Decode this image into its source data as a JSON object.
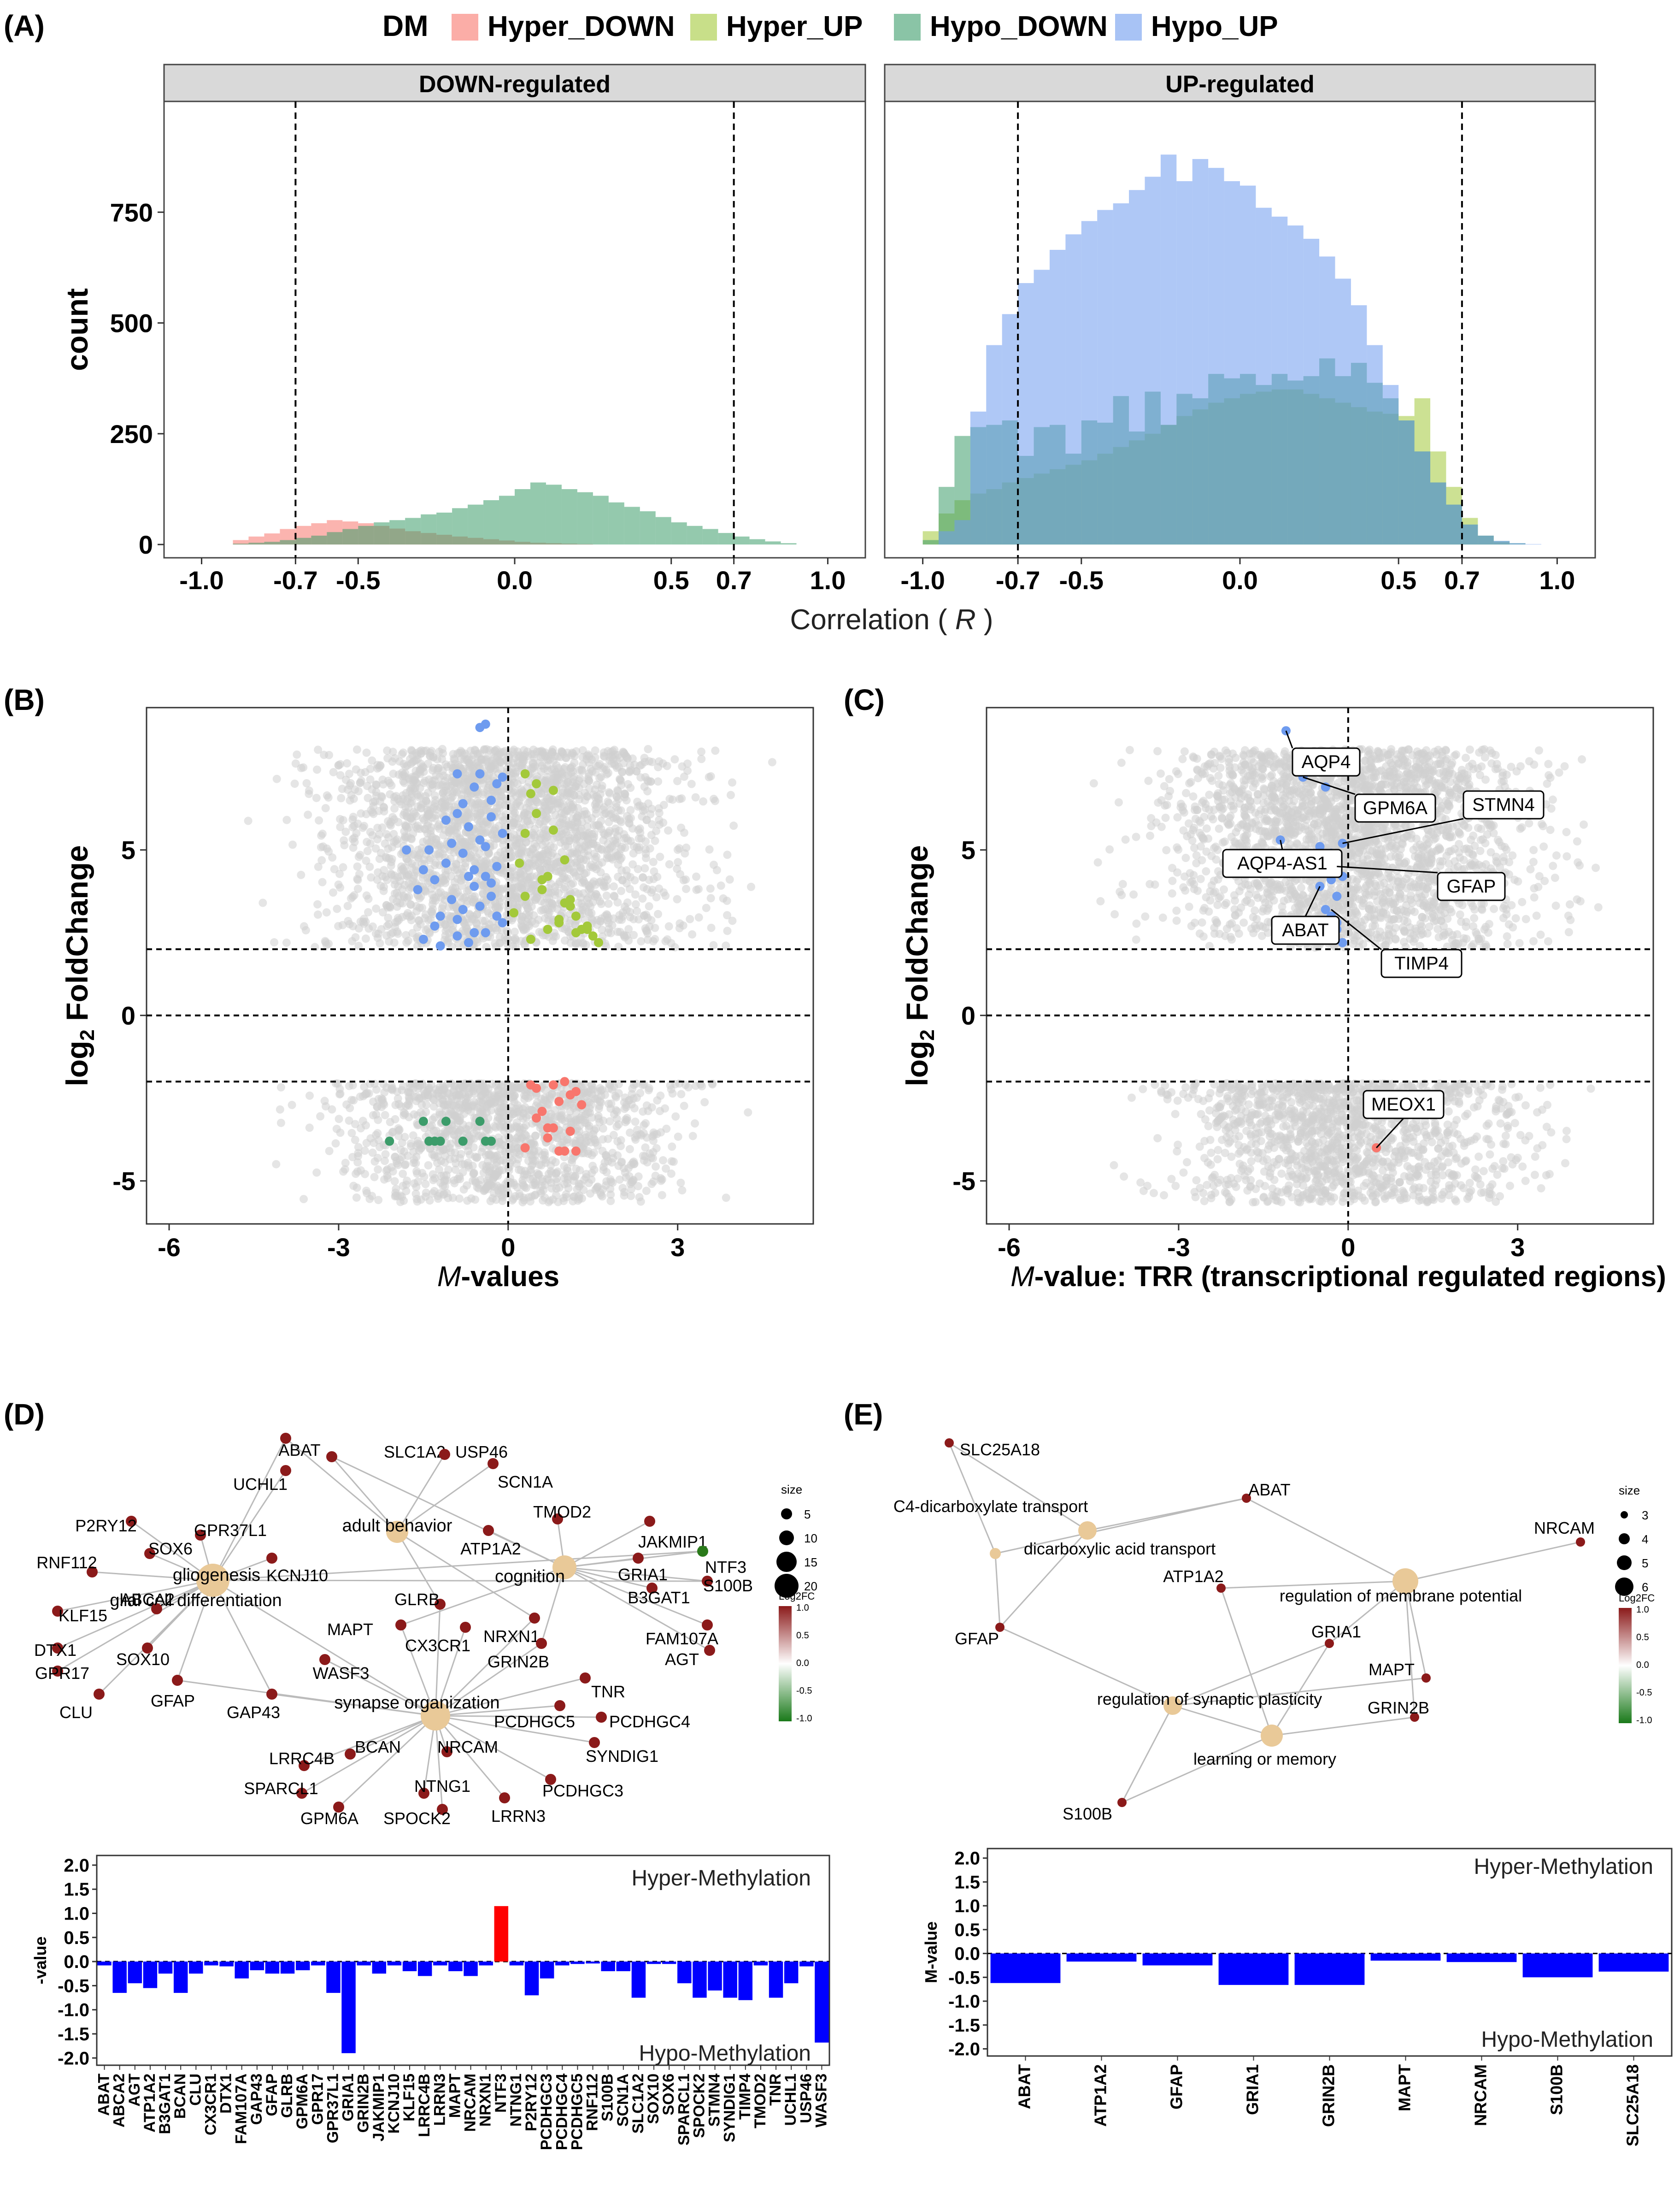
{
  "panels": {
    "a": "(A)",
    "b": "(B)",
    "c": "(C)",
    "d": "(D)",
    "e": "(E)"
  },
  "colors": {
    "hyper_down": "#f8766d",
    "hyper_up": "#a3c93a",
    "hypo_down": "#3c9c6a",
    "hypo_up": "#6e9bef",
    "gray_points": "#cfcfcf",
    "network_node": "#e9c998",
    "gene_node": "#8b1a1a",
    "bar_hypo": "#0000ff",
    "bar_hyper": "#ff0000",
    "facet_strip": "#d9d9d9"
  },
  "chart_data": [
    {
      "id": "A",
      "type": "histogram",
      "legend": {
        "title": "DM",
        "items": [
          "Hyper_DOWN",
          "Hyper_UP",
          "Hypo_DOWN",
          "Hypo_UP"
        ],
        "placement": "top"
      },
      "xlabel_prefix": "Correlation (",
      "xlabel_var": "R",
      "xlabel_suffix": ")",
      "ylabel": "count",
      "xlim": [
        -1.12,
        1.12
      ],
      "ylim": [
        -30,
        1000
      ],
      "xticks": [
        -1.0,
        -0.7,
        -0.5,
        0.0,
        0.5,
        0.7,
        1.0
      ],
      "xtick_labels": [
        "-1.0",
        "-0.7",
        "-0.5",
        "0.0",
        "0.5",
        "0.7",
        "1.0"
      ],
      "yticks": [
        0,
        250,
        500,
        750
      ],
      "ytick_labels": [
        "0",
        "250",
        "500",
        "750"
      ],
      "vlines": [
        -0.7,
        0.7
      ],
      "bin_width": 0.05,
      "facets": [
        {
          "title": "DOWN-regulated",
          "bin_start": -0.9,
          "series": [
            {
              "name": "Hyper_DOWN",
              "values": [
                10,
                18,
                25,
                35,
                42,
                48,
                55,
                52,
                48,
                42,
                36,
                30,
                26,
                22,
                18,
                15,
                12,
                9,
                6,
                4,
                3,
                2,
                1,
                0,
                0,
                0,
                0,
                0,
                0,
                0,
                0,
                0,
                0,
                0,
                0,
                0
              ]
            },
            {
              "name": "Hypo_DOWN",
              "values": [
                2,
                4,
                6,
                10,
                15,
                20,
                28,
                35,
                42,
                50,
                55,
                60,
                68,
                72,
                82,
                90,
                100,
                110,
                125,
                140,
                135,
                125,
                118,
                110,
                95,
                85,
                75,
                62,
                50,
                42,
                35,
                26,
                18,
                12,
                7,
                3
              ]
            }
          ]
        },
        {
          "title": "UP-regulated",
          "bin_start": -1.0,
          "series": [
            {
              "name": "Hyper_UP",
              "values": [
                30,
                70,
                100,
                115,
                125,
                140,
                150,
                160,
                170,
                180,
                190,
                205,
                220,
                235,
                250,
                270,
                290,
                305,
                320,
                330,
                340,
                345,
                350,
                350,
                340,
                330,
                320,
                310,
                300,
                295,
                290,
                330,
                210,
                130,
                60,
                20,
                5,
                0,
                0,
                0
              ]
            },
            {
              "name": "Hypo_DOWN",
              "values": [
                10,
                130,
                245,
                265,
                270,
                280,
                200,
                265,
                270,
                205,
                280,
                275,
                335,
                255,
                345,
                270,
                340,
                330,
                385,
                375,
                385,
                360,
                385,
                370,
                380,
                420,
                380,
                410,
                365,
                330,
                280,
                210,
                140,
                90,
                45,
                20,
                8,
                3,
                0,
                0
              ]
            },
            {
              "name": "Hypo_UP",
              "values": [
                0,
                30,
                55,
                300,
                450,
                520,
                590,
                620,
                665,
                700,
                730,
                755,
                770,
                800,
                830,
                880,
                820,
                870,
                850,
                820,
                810,
                760,
                740,
                720,
                690,
                650,
                600,
                540,
                450,
                360,
                280,
                210,
                140,
                90,
                45,
                20,
                8,
                3,
                1,
                0
              ]
            }
          ]
        }
      ]
    },
    {
      "id": "B",
      "type": "scatter",
      "xlabel_var": "M",
      "xlabel_suffix": "-values",
      "ylabel_log": "log",
      "ylabel_sub": "2",
      "ylabel_rest": "FoldChange",
      "xlim": [
        -6.4,
        5.4
      ],
      "ylim": [
        -6.3,
        9.3
      ],
      "xticks": [
        -6,
        -3,
        0,
        3
      ],
      "xtick_labels": [
        "-6",
        "-3",
        "0",
        "3"
      ],
      "yticks": [
        -5,
        0,
        5
      ],
      "ytick_labels": [
        "-5",
        "0",
        "5"
      ],
      "hlines": [
        -2,
        0,
        2
      ],
      "vlines": [
        0
      ],
      "highlight_points": [
        {
          "group": "Hypo_UP",
          "x": [
            -1.8,
            -1.6,
            -1.5,
            -1.4,
            -1.3,
            -1.2,
            -1.2,
            -1.1,
            -1.0,
            -1.0,
            -0.9,
            -0.9,
            -0.8,
            -0.8,
            -0.7,
            -0.7,
            -0.6,
            -0.6,
            -0.5,
            -0.5,
            -0.4,
            -0.4,
            -0.3,
            -0.3,
            -0.2,
            -0.2,
            -0.1,
            -0.1,
            -0.5,
            -0.4,
            -0.7,
            -1.5,
            -1.3,
            -0.9,
            -0.6,
            -0.3,
            -0.2,
            -0.8,
            -1.1,
            -0.5,
            -0.4,
            -0.3,
            -0.1,
            -0.6,
            -0.9
          ],
          "y": [
            5.0,
            3.8,
            2.3,
            5.0,
            4.1,
            3.0,
            2.1,
            4.6,
            3.5,
            5.2,
            2.4,
            6.1,
            4.9,
            3.2,
            5.7,
            2.2,
            4.4,
            6.9,
            3.3,
            7.3,
            5.1,
            2.5,
            6.5,
            4.0,
            7.0,
            3.0,
            5.5,
            2.8,
            8.7,
            8.8,
            4.2,
            4.4,
            2.7,
            7.3,
            2.5,
            6.0,
            4.5,
            6.4,
            5.9,
            5.3,
            4.2,
            3.6,
            7.2,
            3.9,
            2.9
          ]
        },
        {
          "group": "Hyper_UP",
          "x": [
            0.1,
            0.2,
            0.3,
            0.3,
            0.4,
            0.5,
            0.6,
            0.7,
            0.8,
            0.9,
            1.0,
            1.1,
            1.2,
            1.3,
            1.4,
            1.5,
            1.6,
            0.5,
            0.8,
            1.0,
            0.3,
            0.6,
            0.9,
            1.2,
            0.4,
            0.7,
            1.1,
            1.4
          ],
          "y": [
            3.1,
            4.6,
            7.3,
            5.5,
            2.3,
            6.1,
            3.8,
            2.6,
            6.8,
            2.8,
            4.7,
            3.5,
            3.0,
            2.6,
            2.7,
            2.4,
            2.2,
            7.0,
            5.6,
            3.4,
            3.6,
            4.1,
            2.9,
            2.5,
            6.7,
            4.2,
            3.3,
            2.6
          ]
        },
        {
          "group": "Hyper_DOWN",
          "x": [
            0.4,
            0.5,
            0.6,
            0.7,
            0.8,
            0.9,
            1.0,
            1.1,
            1.2,
            1.3,
            0.5,
            0.8,
            1.0,
            1.2,
            0.7,
            0.3,
            0.9,
            1.1
          ],
          "y": [
            -2.1,
            -2.2,
            -2.9,
            -3.4,
            -2.1,
            -2.6,
            -4.1,
            -3.5,
            -2.3,
            -2.7,
            -3.1,
            -3.4,
            -2.0,
            -4.1,
            -3.7,
            -4.0,
            -4.1,
            -2.4
          ]
        },
        {
          "group": "Hypo_DOWN",
          "x": [
            -2.1,
            -1.5,
            -1.4,
            -1.2,
            -1.1,
            -0.8,
            -0.4,
            -0.3,
            -1.3,
            -0.5
          ],
          "y": [
            -3.8,
            -3.2,
            -3.8,
            -3.8,
            -3.2,
            -3.8,
            -3.8,
            -3.8,
            -3.8,
            -3.2
          ]
        }
      ]
    },
    {
      "id": "C",
      "type": "scatter",
      "xlabel_var": "M",
      "xlabel_suffix": "-value: TRR (transcriptional regulated regions)",
      "ylabel_log": "log",
      "ylabel_sub": "2",
      "ylabel_rest": "FoldChange",
      "xlim": [
        -6.4,
        5.4
      ],
      "ylim": [
        -6.3,
        9.3
      ],
      "xticks": [
        -6,
        -3,
        0,
        3
      ],
      "xtick_labels": [
        "-6",
        "-3",
        "0",
        "3"
      ],
      "yticks": [
        -5,
        0,
        5
      ],
      "ytick_labels": [
        "-5",
        "0",
        "5"
      ],
      "hlines": [
        -2,
        0,
        2
      ],
      "vlines": [
        0
      ],
      "highlight_points": [
        {
          "group": "Hypo_UP",
          "x": [
            -1.1,
            -0.8,
            -0.3,
            -0.1,
            -1.2,
            -0.5,
            -0.4,
            -0.3,
            -0.2,
            -0.1,
            -0.3,
            -0.5,
            -0.4,
            -0.2,
            -0.3,
            -0.3,
            -0.2,
            -0.1,
            -0.4,
            -0.2
          ],
          "y": [
            8.6,
            7.2,
            7.5,
            5.2,
            5.3,
            5.1,
            4.7,
            4.9,
            4.5,
            4.2,
            4.1,
            3.9,
            3.2,
            3.6,
            3.0,
            2.5,
            2.8,
            2.2,
            6.9,
            2.6
          ]
        },
        {
          "group": "Hyper_DOWN",
          "x": [
            0.5
          ],
          "y": [
            -4.0
          ]
        }
      ],
      "labels": [
        {
          "text": "AQP4",
          "x": -1.1,
          "y": 8.6
        },
        {
          "text": "GPM6A",
          "x": -0.8,
          "y": 7.2
        },
        {
          "text": "STMN4",
          "x": -0.1,
          "y": 5.2
        },
        {
          "text": "AQP4-AS1",
          "x": -1.2,
          "y": 5.3
        },
        {
          "text": "GFAP",
          "x": -0.2,
          "y": 4.5
        },
        {
          "text": "ABAT",
          "x": -0.5,
          "y": 3.9
        },
        {
          "text": "TIMP4",
          "x": -0.3,
          "y": 3.2
        },
        {
          "text": "MEOX1",
          "x": 0.5,
          "y": -4.0
        }
      ]
    },
    {
      "id": "D_bars",
      "type": "bar",
      "ylabel": "-value",
      "ylim": [
        -2.15,
        2.2
      ],
      "yticks": [
        -2.0,
        -1.5,
        -1.0,
        -0.5,
        0.0,
        0.5,
        1.0,
        1.5,
        2.0
      ],
      "ytick_labels": [
        "-2.0",
        "-1.5",
        "-1.0",
        "-0.5",
        "0.0",
        "0.5",
        "1.0",
        "1.5",
        "2.0"
      ],
      "annotations": [
        "Hyper-Methylation",
        "Hypo-Methylation"
      ],
      "categories": [
        "ABAT",
        "ABCA2",
        "AGT",
        "ATP1A2",
        "B3GAT1",
        "BCAN",
        "CLU",
        "CX3CR1",
        "DTX1",
        "FAM107A",
        "GAP43",
        "GFAP",
        "GLRB",
        "GPM6A",
        "GPR17",
        "GPR37L1",
        "GRIA1",
        "GRIN2B",
        "JAKMIP1",
        "KCNJ10",
        "KLF15",
        "LRRC4B",
        "LRRN3",
        "MAPT",
        "NRCAM",
        "NRXN1",
        "NTF3",
        "NTNG1",
        "P2RY12",
        "PCDHGC3",
        "PCDHGC4",
        "PCDHGC5",
        "RNF112",
        "S100B",
        "SCN1A",
        "SLC1A2",
        "SOX10",
        "SOX6",
        "SPARCL1",
        "SPOCK2",
        "STMN4",
        "SYNDIG1",
        "TIMP4",
        "TMOD2",
        "TNR",
        "UCHL1",
        "USP46",
        "WASF3"
      ],
      "values": [
        -0.08,
        -0.65,
        -0.45,
        -0.55,
        -0.25,
        -0.65,
        -0.25,
        -0.08,
        -0.1,
        -0.35,
        -0.18,
        -0.25,
        -0.25,
        -0.18,
        -0.08,
        -0.65,
        -1.9,
        -0.08,
        -0.25,
        -0.08,
        -0.2,
        -0.3,
        -0.08,
        -0.2,
        -0.3,
        -0.08,
        1.15,
        -0.08,
        -0.7,
        -0.35,
        -0.08,
        -0.05,
        -0.04,
        -0.2,
        -0.2,
        -0.75,
        -0.05,
        -0.05,
        -0.45,
        -0.75,
        -0.6,
        -0.75,
        -0.8,
        -0.08,
        -0.75,
        -0.45,
        -0.1,
        -1.68
      ]
    },
    {
      "id": "E_bars",
      "type": "bar",
      "ylabel": "M-value",
      "ylim": [
        -2.15,
        2.2
      ],
      "yticks": [
        -2.0,
        -1.5,
        -1.0,
        -0.5,
        0.0,
        0.5,
        1.0,
        1.5,
        2.0
      ],
      "ytick_labels": [
        "-2.0",
        "-1.5",
        "-1.0",
        "-0.5",
        "0.0",
        "0.5",
        "1.0",
        "1.5",
        "2.0"
      ],
      "annotations": [
        "Hyper-Methylation",
        "Hypo-Methylation"
      ],
      "categories": [
        "ABAT",
        "ATP1A2",
        "GFAP",
        "GRIA1",
        "GRIN2B",
        "MAPT",
        "NRCAM",
        "S100B",
        "SLC25A18"
      ],
      "values": [
        -0.62,
        -0.17,
        -0.25,
        -0.66,
        -0.66,
        -0.15,
        -0.18,
        -0.5,
        -0.38
      ]
    }
  ],
  "networks": {
    "d": {
      "legend_size_title": "size",
      "legend_size_labels": [
        "5",
        "10",
        "15",
        "20"
      ],
      "legend_fc_title": "Log2FC",
      "legend_fc_labels": [
        "1.0",
        "0.5",
        "0.0",
        "-0.5",
        "-1.0"
      ],
      "terms": [
        {
          "id": "gliogenesis",
          "label": "gliogenesis"
        },
        {
          "id": "glial",
          "label": "glial cell differentiation"
        },
        {
          "id": "adult",
          "label": "adult behavior"
        },
        {
          "id": "cognition",
          "label": "cognition"
        },
        {
          "id": "synapse",
          "label": "synapse organization"
        }
      ],
      "genes": [
        "ABAT",
        "UCHL1",
        "SLC1A2",
        "USP46",
        "SCN1A",
        "P2RY12",
        "GPR37L1",
        "SOX6",
        "RNF112",
        "ABCA2",
        "KCNJ10",
        "TMOD2",
        "ATP1A2",
        "JAKMIP1",
        "GRIA1",
        "NTF3",
        "S100B",
        "B3GAT1",
        "KLF15",
        "DTX1",
        "GPR17",
        "CLU",
        "SOX10",
        "GFAP",
        "GAP43",
        "WASF3",
        "MAPT",
        "CX3CR1",
        "GLRB",
        "NRXN1",
        "GRIN2B",
        "FAM107A",
        "AGT",
        "TNR",
        "PCDHGC5",
        "PCDHGC4",
        "SYNDIG1",
        "PCDHGC3",
        "LRRC4B",
        "BCAN",
        "SPARCL1",
        "GPM6A",
        "NRCAM",
        "NTNG1",
        "SPOCK2",
        "LRRN3"
      ]
    },
    "e": {
      "legend_size_title": "size",
      "legend_size_labels": [
        "3",
        "4",
        "5",
        "6"
      ],
      "legend_fc_title": "Log2FC",
      "legend_fc_labels": [
        "1.0",
        "0.5",
        "0.0",
        "-0.5",
        "-1.0"
      ],
      "terms": [
        {
          "id": "c4",
          "label": "C4-dicarboxylate transport"
        },
        {
          "id": "dicarb",
          "label": "dicarboxylic acid transport"
        },
        {
          "id": "membrane",
          "label": "regulation of membrane potential"
        },
        {
          "id": "plasticity",
          "label": "regulation of synaptic plasticity"
        },
        {
          "id": "memory",
          "label": "learning or memory"
        }
      ],
      "genes": [
        "SLC25A18",
        "ABAT",
        "NRCAM",
        "ATP1A2",
        "GFAP",
        "GRIA1",
        "MAPT",
        "GRIN2B",
        "S100B"
      ]
    }
  }
}
